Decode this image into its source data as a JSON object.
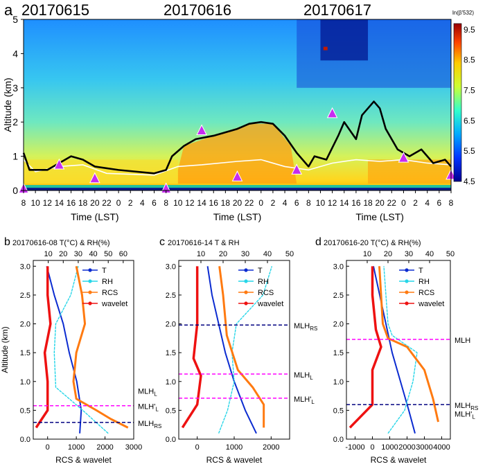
{
  "panel_letters": [
    "a",
    "b",
    "c",
    "d"
  ],
  "chart_data": [
    {
      "type": "heatmap",
      "panel": "a",
      "date_labels": [
        "20170615",
        "20170616",
        "20170617"
      ],
      "ylabel": "Altitude (km)",
      "xlabel": "Time (LST)",
      "ylim": [
        0,
        5
      ],
      "yticks": [
        "0",
        "1",
        "2",
        "3",
        "4",
        "5"
      ],
      "xticks": [
        "8",
        "10",
        "12",
        "14",
        "16",
        "18",
        "20",
        "22",
        "0",
        "2",
        "4",
        "6",
        "8",
        "10",
        "12",
        "14",
        "16",
        "18",
        "20",
        "22",
        "0",
        "2",
        "4",
        "6",
        "8",
        "10",
        "12",
        "14",
        "16",
        "18",
        "20",
        "22",
        "0",
        "2",
        "4",
        "6",
        "8"
      ],
      "colorbar": {
        "label": "ln(β'532)",
        "ticks": [
          "4.5",
          "5.5",
          "6.5",
          "7.5",
          "8.5",
          "9.5"
        ],
        "range": [
          4.5,
          9.7
        ]
      },
      "mlh_black": [
        [
          0,
          1.1
        ],
        [
          1,
          0.6
        ],
        [
          4,
          0.6
        ],
        [
          6,
          0.8
        ],
        [
          8,
          1.0
        ],
        [
          10,
          0.9
        ],
        [
          12,
          0.7
        ],
        [
          16,
          0.6
        ],
        [
          22,
          0.5
        ],
        [
          24,
          0.6
        ],
        [
          25,
          1.0
        ],
        [
          27,
          1.3
        ],
        [
          29,
          1.5
        ],
        [
          32,
          1.6
        ],
        [
          36,
          1.8
        ],
        [
          38,
          1.95
        ],
        [
          40,
          2.0
        ],
        [
          42,
          1.95
        ],
        [
          44,
          1.6
        ],
        [
          46,
          1.1
        ],
        [
          48,
          0.7
        ],
        [
          49,
          1.0
        ],
        [
          51,
          0.9
        ],
        [
          53,
          1.6
        ],
        [
          54,
          2.0
        ],
        [
          56,
          1.5
        ],
        [
          57,
          2.2
        ],
        [
          59,
          2.6
        ],
        [
          60,
          2.4
        ],
        [
          61,
          1.8
        ],
        [
          63,
          1.2
        ],
        [
          65,
          1.0
        ],
        [
          67,
          1.2
        ],
        [
          69,
          0.8
        ],
        [
          71,
          0.9
        ],
        [
          72,
          0.7
        ]
      ],
      "mlh_white": [
        [
          0,
          0.9
        ],
        [
          2,
          0.55
        ],
        [
          6,
          0.7
        ],
        [
          10,
          0.75
        ],
        [
          14,
          0.5
        ],
        [
          22,
          0.45
        ],
        [
          26,
          0.7
        ],
        [
          30,
          0.75
        ],
        [
          36,
          0.85
        ],
        [
          40,
          0.9
        ],
        [
          44,
          0.7
        ],
        [
          48,
          0.6
        ],
        [
          52,
          0.8
        ],
        [
          56,
          0.9
        ],
        [
          60,
          0.85
        ],
        [
          64,
          0.9
        ],
        [
          68,
          0.8
        ],
        [
          72,
          0.75
        ]
      ],
      "triangles": [
        {
          "t": 0,
          "alt": 0.05
        },
        {
          "t": 6,
          "alt": 0.75
        },
        {
          "t": 12,
          "alt": 0.35
        },
        {
          "t": 24,
          "alt": 0.05
        },
        {
          "t": 30,
          "alt": 1.75
        },
        {
          "t": 36,
          "alt": 0.4
        },
        {
          "t": 46,
          "alt": 0.6
        },
        {
          "t": 52,
          "alt": 2.25
        },
        {
          "t": 64,
          "alt": 0.95
        },
        {
          "t": 72,
          "alt": 0.45
        }
      ]
    },
    {
      "type": "line",
      "panel": "b",
      "title": "20170616-08 T(°C) & RH(%)",
      "xlabel": "RCS & wavelet",
      "ylabel": "Altitude (km)",
      "ylim": [
        0,
        3.1
      ],
      "xlim_bottom": [
        -500,
        3000
      ],
      "xlim_top": [
        0,
        67
      ],
      "xticks_bottom": [
        "0",
        "1000",
        "2000",
        "3000"
      ],
      "xticks_top": [
        "10",
        "20",
        "30",
        "40",
        "50",
        "60"
      ],
      "yticks": [
        "0.0",
        "0.5",
        "1.0",
        "1.5",
        "2.0",
        "2.5",
        "3.0"
      ],
      "legend": [
        "T",
        "RH",
        "RCS",
        "wavelet"
      ],
      "series": [
        {
          "name": "T",
          "axis": "top",
          "points": [
            [
              31,
              0.1
            ],
            [
              32,
              0.5
            ],
            [
              29,
              1.0
            ],
            [
              24,
              1.5
            ],
            [
              20,
              2.0
            ],
            [
              14,
              2.5
            ],
            [
              9,
              3.0
            ]
          ]
        },
        {
          "name": "RH",
          "axis": "top",
          "points": [
            [
              50,
              0.1
            ],
            [
              33,
              0.5
            ],
            [
              15,
              0.9
            ],
            [
              14,
              1.5
            ],
            [
              15,
              2.0
            ],
            [
              25,
              2.5
            ],
            [
              30,
              3.0
            ]
          ]
        },
        {
          "name": "RCS",
          "axis": "bottom",
          "points": [
            [
              2800,
              0.2
            ],
            [
              2200,
              0.35
            ],
            [
              1700,
              0.5
            ],
            [
              1000,
              0.7
            ],
            [
              900,
              1.0
            ],
            [
              1000,
              1.5
            ],
            [
              1300,
              2.0
            ],
            [
              1200,
              2.5
            ],
            [
              1000,
              3.0
            ]
          ]
        },
        {
          "name": "wavelet",
          "axis": "bottom",
          "points": [
            [
              -400,
              0.2
            ],
            [
              0,
              0.5
            ],
            [
              0,
              1.0
            ],
            [
              -100,
              1.5
            ],
            [
              100,
              2.0
            ],
            [
              0,
              2.5
            ],
            [
              0,
              3.0
            ]
          ]
        }
      ],
      "mlh_lines": [
        {
          "label": "MLH_L",
          "label_main": "MLH",
          "label_sub": "L",
          "alt": 0.85
        },
        {
          "label": "MLH'_L",
          "label_main": "MLH'",
          "label_sub": "L",
          "alt": 0.58,
          "color": "#ff00ff"
        },
        {
          "label": "MLH_RS",
          "label_main": "MLH",
          "label_sub": "RS",
          "alt": 0.29,
          "color": "#000080"
        }
      ]
    },
    {
      "type": "line",
      "panel": "c",
      "title": "20170616-14    T & RH",
      "xlabel": "RCS & wavelet",
      "ylim": [
        0,
        3.1
      ],
      "xlim_bottom": [
        -500,
        2500
      ],
      "xlim_top": [
        0,
        50
      ],
      "xticks_bottom": [
        "0",
        "1000",
        "2000"
      ],
      "xticks_top": [
        "10",
        "20",
        "30",
        "40",
        "50"
      ],
      "yticks": [
        "0.0",
        "0.5",
        "1.0",
        "1.5",
        "2.0",
        "2.5",
        "3.0"
      ],
      "legend": [
        "T",
        "RH",
        "RCS",
        "wavelet"
      ],
      "series": [
        {
          "name": "T",
          "axis": "top",
          "points": [
            [
              35,
              0.1
            ],
            [
              30,
              0.5
            ],
            [
              25,
              1.0
            ],
            [
              21,
              1.5
            ],
            [
              18,
              2.0
            ],
            [
              15,
              2.5
            ],
            [
              13,
              3.0
            ]
          ]
        },
        {
          "name": "RH",
          "axis": "top",
          "points": [
            [
              18,
              0.1
            ],
            [
              22,
              0.5
            ],
            [
              25,
              1.0
            ],
            [
              24,
              1.5
            ],
            [
              26,
              2.0
            ],
            [
              38,
              2.5
            ],
            [
              42,
              3.0
            ]
          ]
        },
        {
          "name": "RCS",
          "axis": "bottom",
          "points": [
            [
              1800,
              0.2
            ],
            [
              1800,
              0.6
            ],
            [
              1500,
              0.9
            ],
            [
              1100,
              1.2
            ],
            [
              800,
              1.8
            ],
            [
              700,
              2.5
            ],
            [
              600,
              3.0
            ]
          ]
        },
        {
          "name": "wavelet",
          "axis": "bottom",
          "points": [
            [
              -400,
              0.2
            ],
            [
              0,
              0.6
            ],
            [
              100,
              1.1
            ],
            [
              -100,
              1.4
            ],
            [
              0,
              2.0
            ],
            [
              0,
              2.5
            ],
            [
              0,
              3.0
            ]
          ]
        }
      ],
      "mlh_lines": [
        {
          "label": "MLH_RS",
          "label_main": "MLH",
          "label_sub": "RS",
          "alt": 1.98,
          "color": "#000080"
        },
        {
          "label": "MLH_L",
          "label_main": "MLH",
          "label_sub": "L",
          "alt": 1.13,
          "color": "#ff00ff"
        },
        {
          "label": "MLH'_L",
          "label_main": "MLH'",
          "label_sub": "L",
          "alt": 0.71,
          "color": "#ff00ff"
        }
      ]
    },
    {
      "type": "line",
      "panel": "d",
      "title": "20170616-20 T(°C) & RH(%)",
      "xlabel": "RCS & wavelet",
      "ylim": [
        0,
        3.1
      ],
      "xlim_bottom": [
        -1500,
        4500
      ],
      "xlim_top": [
        0,
        50
      ],
      "xticks_bottom": [
        "-1000",
        "0",
        "1000",
        "2000",
        "3000",
        "4000"
      ],
      "xticks_top": [
        "10",
        "20",
        "30",
        "40",
        "50"
      ],
      "yticks": [
        "0.0",
        "0.5",
        "1.0",
        "1.5",
        "2.0",
        "2.5",
        "3.0"
      ],
      "legend": [
        "T",
        "RH",
        "RCS",
        "wavelet"
      ],
      "series": [
        {
          "name": "T",
          "axis": "top",
          "points": [
            [
              33,
              0.1
            ],
            [
              30,
              0.5
            ],
            [
              26,
              1.0
            ],
            [
              22,
              1.5
            ],
            [
              19,
              2.0
            ],
            [
              16,
              2.5
            ],
            [
              13,
              3.0
            ]
          ]
        },
        {
          "name": "RH",
          "axis": "top",
          "points": [
            [
              20,
              0.1
            ],
            [
              28,
              0.5
            ],
            [
              32,
              1.0
            ],
            [
              34,
              1.5
            ],
            [
              22,
              1.8
            ],
            [
              20,
              2.0
            ],
            [
              19,
              2.5
            ],
            [
              18,
              3.0
            ]
          ]
        },
        {
          "name": "RCS",
          "axis": "bottom",
          "points": [
            [
              3800,
              0.3
            ],
            [
              3500,
              0.7
            ],
            [
              3000,
              1.2
            ],
            [
              2000,
              1.6
            ],
            [
              900,
              1.75
            ],
            [
              600,
              2.0
            ],
            [
              500,
              2.5
            ],
            [
              400,
              3.0
            ]
          ]
        },
        {
          "name": "wavelet",
          "axis": "bottom",
          "points": [
            [
              -1300,
              0.2
            ],
            [
              0,
              0.6
            ],
            [
              0,
              1.2
            ],
            [
              500,
              1.6
            ],
            [
              200,
              1.9
            ],
            [
              0,
              2.5
            ],
            [
              0,
              3.0
            ]
          ]
        }
      ],
      "mlh_lines": [
        {
          "label": "MLH",
          "label_main": "MLH",
          "label_sub": "",
          "alt": 1.73,
          "color": "#ff00ff"
        },
        {
          "label": "MLH_RS",
          "label_main": "MLH",
          "label_sub": "RS",
          "alt": 0.6,
          "color": "#000080"
        },
        {
          "label": "MLH'_L",
          "label_main": "MLH'",
          "label_sub": "L",
          "alt": 0.45,
          "color": "#ff00ff",
          "noline": true
        }
      ]
    }
  ],
  "colors": {
    "T": "#0b2bd0",
    "RH": "#27d6e8",
    "RCS": "#ff7a10",
    "wavelet": "#ee1111",
    "marker": "#c62cf0"
  }
}
